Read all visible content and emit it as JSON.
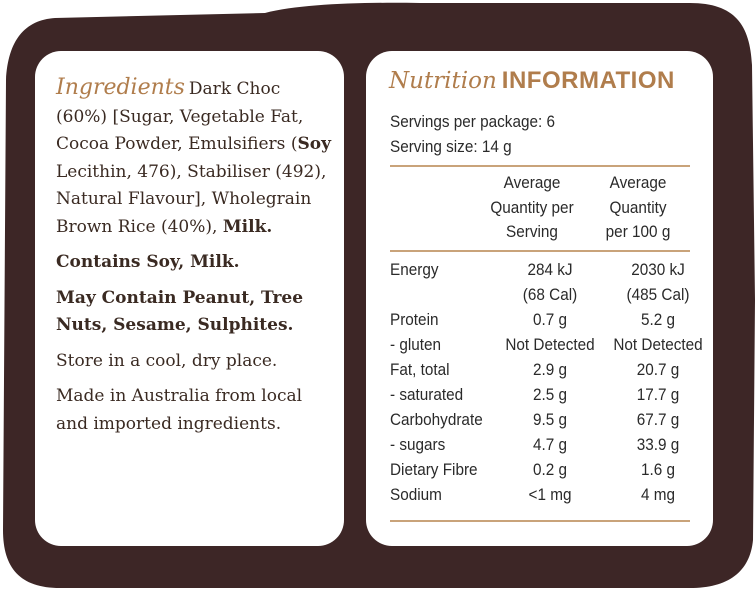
{
  "colors": {
    "brown": "#3d2626",
    "accent": "#b07d4c",
    "rule": "#c9a37a",
    "text": "#2a2a2a"
  },
  "ingredients": {
    "heading": "Ingredients",
    "list_start": "Dark Choc (60%) [Sugar, Vegetable Fat, Cocoa Powder, Emulsifiers (",
    "soy_bold": "Soy",
    "list_mid": " Lecithin, 476), Stabiliser (492), Natural Flavour], Wholegrain Brown Rice (40%), ",
    "milk_bold": "Milk.",
    "contains": "Contains Soy, Milk.",
    "may_contain": "May Contain Peanut, Tree Nuts, Sesame, Sulphites.",
    "storage": "Store in a cool, dry place.",
    "origin": "Made in Australia from local and imported ingredients."
  },
  "nutrition": {
    "title_script": "Nutrition",
    "title_caps": "INFORMATION",
    "servings_per_package": "Servings per package: 6",
    "serving_size": "Serving size: 14 g",
    "col_serving": [
      "Average",
      "Quantity per",
      "Serving"
    ],
    "col_100g": [
      "Average",
      "Quantity",
      "per 100 g"
    ],
    "rows": [
      {
        "name": "Energy",
        "serving": "284 kJ",
        "per100": "2030 kJ"
      },
      {
        "name": "",
        "serving": "(68 Cal)",
        "per100": "(485 Cal)"
      },
      {
        "name": "Protein",
        "serving": "0.7 g",
        "per100": "5.2 g"
      },
      {
        "name": "- gluten",
        "serving": "Not Detected",
        "per100": "Not Detected"
      },
      {
        "name": "Fat, total",
        "serving": "2.9 g",
        "per100": "20.7 g"
      },
      {
        "name": "- saturated",
        "serving": "2.5 g",
        "per100": "17.7 g"
      },
      {
        "name": "Carbohydrate",
        "serving": "9.5 g",
        "per100": "67.7 g"
      },
      {
        "name": "- sugars",
        "serving": "4.7 g",
        "per100": "33.9 g"
      },
      {
        "name": "Dietary Fibre",
        "serving": "0.2 g",
        "per100": "1.6 g"
      },
      {
        "name": "Sodium",
        "serving": "<1 mg",
        "per100": "4 mg"
      }
    ]
  }
}
